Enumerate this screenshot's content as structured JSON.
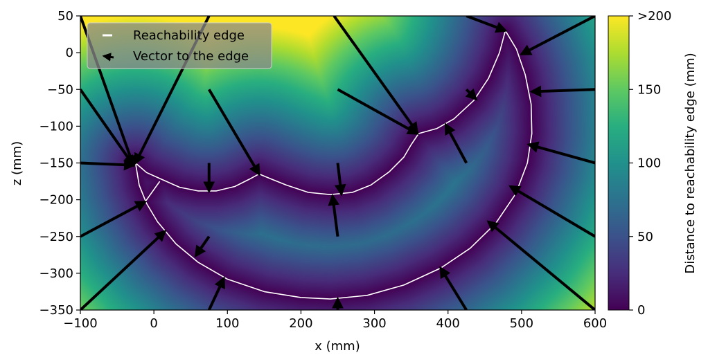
{
  "chart_data": {
    "type": "heatmap",
    "title": "",
    "xlabel": "x (mm)",
    "ylabel": "z (mm)",
    "xlim": [
      -100,
      600
    ],
    "ylim": [
      -350,
      50
    ],
    "xticks": [
      -100,
      0,
      100,
      200,
      300,
      400,
      500,
      600
    ],
    "yticks": [
      50,
      0,
      -50,
      -100,
      -150,
      -200,
      -250,
      -300,
      -350
    ],
    "xtick_labels": [
      "−100",
      "0",
      "100",
      "200",
      "300",
      "400",
      "500",
      "600"
    ],
    "ytick_labels": [
      "50",
      "0",
      "−50",
      "−100",
      "−150",
      "−200",
      "−250",
      "−300",
      "−350"
    ],
    "colormap": "viridis",
    "colorbar": {
      "label": "Distance to reachability edge (mm)",
      "range": [
        0,
        200
      ],
      "ticks": [
        0,
        50,
        100,
        150,
        200
      ],
      "tick_labels": [
        "0",
        "50",
        "100",
        "150",
        ">200"
      ]
    },
    "legend": {
      "placement": "top-left",
      "entries": [
        {
          "label": "Reachability edge",
          "style": "white line"
        },
        {
          "label": "Vector to the edge",
          "style": "black arrow"
        }
      ]
    },
    "reachability_edge": [
      {
        "name": "outer",
        "points": [
          [
            -25,
            -150
          ],
          [
            -20,
            -180
          ],
          [
            -10,
            -205
          ],
          [
            5,
            -230
          ],
          [
            30,
            -260
          ],
          [
            60,
            -285
          ],
          [
            100,
            -308
          ],
          [
            150,
            -325
          ],
          [
            200,
            -333
          ],
          [
            240,
            -335
          ],
          [
            290,
            -330
          ],
          [
            340,
            -316
          ],
          [
            390,
            -293
          ],
          [
            430,
            -266
          ],
          [
            465,
            -232
          ],
          [
            492,
            -192
          ],
          [
            508,
            -150
          ],
          [
            514,
            -110
          ],
          [
            513,
            -70
          ],
          [
            505,
            -30
          ],
          [
            493,
            5
          ],
          [
            478,
            30
          ]
        ]
      },
      {
        "name": "inner",
        "points": [
          [
            478,
            30
          ],
          [
            470,
            0
          ],
          [
            455,
            -35
          ],
          [
            435,
            -65
          ],
          [
            408,
            -90
          ],
          [
            385,
            -103
          ],
          [
            360,
            -110
          ],
          [
            350,
            -125
          ],
          [
            340,
            -142
          ],
          [
            320,
            -162
          ],
          [
            295,
            -180
          ],
          [
            270,
            -190
          ],
          [
            240,
            -193
          ],
          [
            210,
            -190
          ],
          [
            180,
            -180
          ],
          [
            160,
            -172
          ],
          [
            143,
            -165
          ],
          [
            130,
            -172
          ],
          [
            110,
            -182
          ],
          [
            85,
            -188
          ],
          [
            60,
            -188
          ],
          [
            35,
            -183
          ],
          [
            10,
            -172
          ],
          [
            -10,
            -163
          ],
          [
            -25,
            -150
          ]
        ]
      },
      {
        "name": "spur",
        "points": [
          [
            -12,
            -203
          ],
          [
            8,
            -175
          ]
        ]
      }
    ],
    "vectors": [
      {
        "from": [
          -100,
          50
        ],
        "to": [
          -28,
          -153
        ]
      },
      {
        "from": [
          -100,
          -50
        ],
        "to": [
          -28,
          -153
        ]
      },
      {
        "from": [
          -100,
          -150
        ],
        "to": [
          -28,
          -153
        ]
      },
      {
        "from": [
          75,
          50
        ],
        "to": [
          -25,
          -150
        ]
      },
      {
        "from": [
          -100,
          -250
        ],
        "to": [
          -12,
          -203
        ]
      },
      {
        "from": [
          -100,
          -350
        ],
        "to": [
          15,
          -243
        ]
      },
      {
        "from": [
          75,
          -50
        ],
        "to": [
          143,
          -165
        ]
      },
      {
        "from": [
          75,
          -150
        ],
        "to": [
          75,
          -188
        ]
      },
      {
        "from": [
          245,
          50
        ],
        "to": [
          358,
          -108
        ]
      },
      {
        "from": [
          250,
          -50
        ],
        "to": [
          358,
          -110
        ]
      },
      {
        "from": [
          250,
          -150
        ],
        "to": [
          255,
          -192
        ]
      },
      {
        "from": [
          250,
          -250
        ],
        "to": [
          243,
          -195
        ]
      },
      {
        "from": [
          75,
          -250
        ],
        "to": [
          57,
          -276
        ]
      },
      {
        "from": [
          75,
          -350
        ],
        "to": [
          95,
          -307
        ]
      },
      {
        "from": [
          250,
          -350
        ],
        "to": [
          250,
          -335
        ]
      },
      {
        "from": [
          425,
          -350
        ],
        "to": [
          390,
          -293
        ]
      },
      {
        "from": [
          425,
          -150
        ],
        "to": [
          397,
          -98
        ]
      },
      {
        "from": [
          425,
          -50
        ],
        "to": [
          438,
          -63
        ]
      },
      {
        "from": [
          425,
          50
        ],
        "to": [
          478,
          30
        ]
      },
      {
        "from": [
          600,
          50
        ],
        "to": [
          500,
          -2
        ]
      },
      {
        "from": [
          600,
          -50
        ],
        "to": [
          514,
          -53
        ]
      },
      {
        "from": [
          600,
          -150
        ],
        "to": [
          510,
          -125
        ]
      },
      {
        "from": [
          600,
          -250
        ],
        "to": [
          485,
          -182
        ]
      },
      {
        "from": [
          600,
          -350
        ],
        "to": [
          455,
          -230
        ]
      }
    ]
  }
}
